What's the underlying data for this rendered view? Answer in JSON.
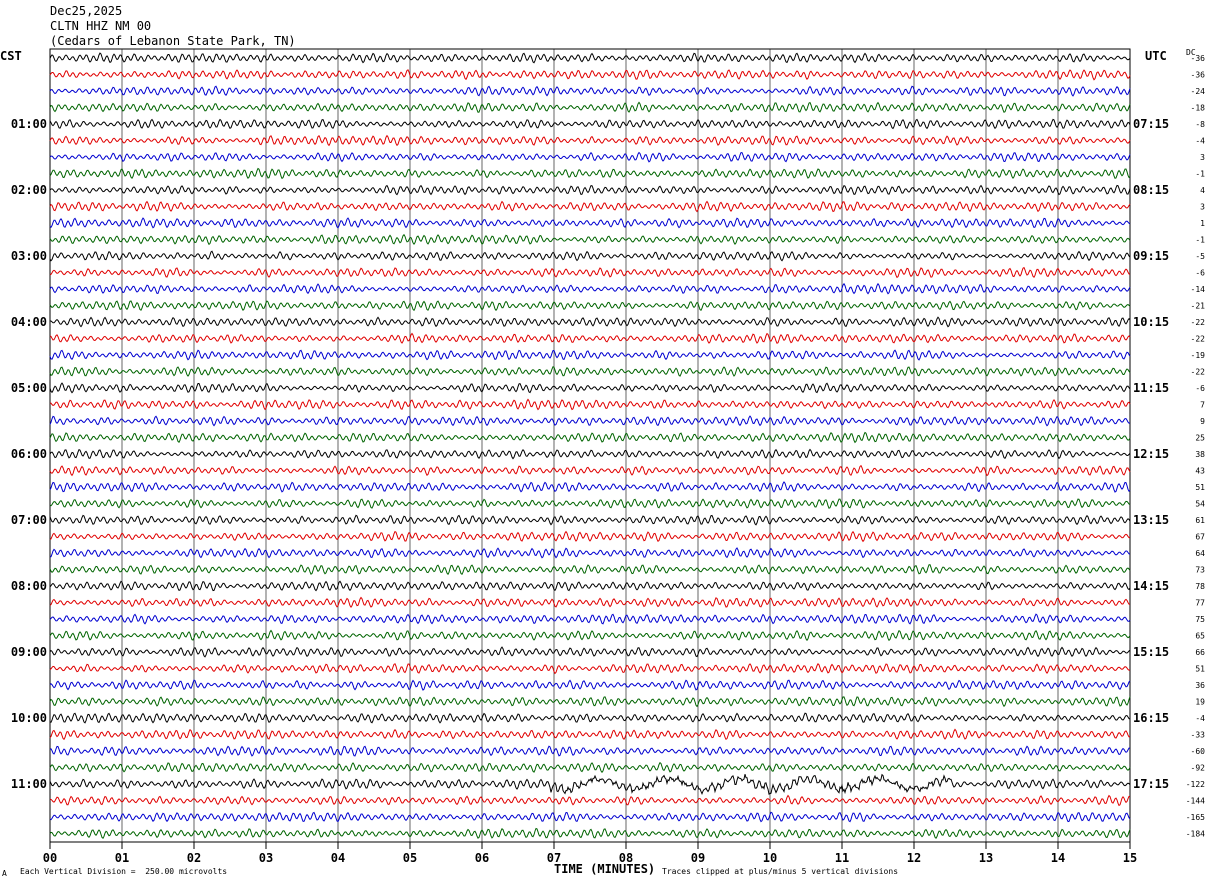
{
  "header": {
    "date": "Dec25,2025",
    "station": "CLTN HHZ NM 00",
    "location": "(Cedars of Lebanon State Park, TN)"
  },
  "timezones": {
    "left": "CST",
    "right": "UTC",
    "dc_label": "DC"
  },
  "footer": {
    "division": "Each Vertical Division =  250.00 microvolts",
    "xlabel": "TIME (MINUTES)",
    "clip": "Traces clipped at plus/minus 5 vertical divisions",
    "mark": "A"
  },
  "colors": {
    "trace_cycle": [
      "#000000",
      "#e00000",
      "#0000d0",
      "#006400"
    ],
    "grid": "#000000"
  },
  "chart_data": {
    "type": "line",
    "xlabel": "TIME (MINUTES)",
    "xlim": [
      0,
      15
    ],
    "x_ticks": [
      "00",
      "01",
      "02",
      "03",
      "04",
      "05",
      "06",
      "07",
      "08",
      "09",
      "10",
      "11",
      "12",
      "13",
      "14",
      "15"
    ],
    "left_hour_labels": [
      "01:00",
      "02:00",
      "03:00",
      "04:00",
      "05:00",
      "06:00",
      "07:00",
      "08:00",
      "09:00",
      "10:00",
      "11:00"
    ],
    "right_hour_labels": [
      "07:15",
      "08:15",
      "09:15",
      "10:15",
      "11:15",
      "12:15",
      "13:15",
      "14:15",
      "15:15",
      "16:15",
      "17:15"
    ],
    "dc_offsets": [
      "-36",
      "-36",
      "-24",
      "-18",
      "-8",
      "-4",
      "3",
      "-1",
      "4",
      "3",
      "1",
      "-1",
      "-5",
      "-6",
      "-14",
      "-21",
      "-22",
      "-22",
      "-19",
      "-22",
      "-6",
      "7",
      "9",
      "25",
      "38",
      "43",
      "51",
      "54",
      "61",
      "67",
      "64",
      "73",
      "78",
      "77",
      "75",
      "65",
      "66",
      "51",
      "36",
      "19",
      "-4",
      "-33",
      "-60",
      "-92",
      "-122",
      "-144",
      "-165",
      "-184"
    ],
    "trace_count": 48,
    "minutes_per_trace": 15,
    "legend": "none"
  }
}
